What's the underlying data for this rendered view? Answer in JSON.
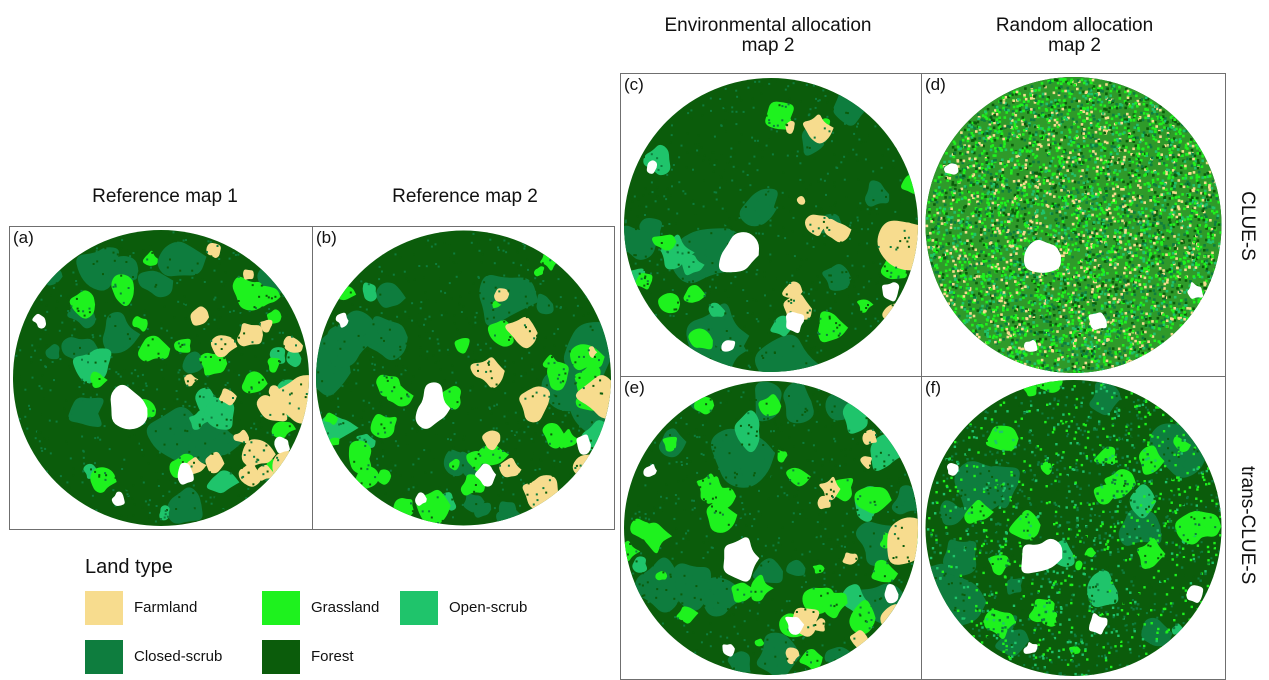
{
  "colors": {
    "farmland": "#f7dc8e",
    "grassland": "#1ef21e",
    "open_scrub": "#1fc46b",
    "closed_scrub": "#0e7d3e",
    "forest": "#0b5c0b",
    "urban": "#ffffff"
  },
  "columns": {
    "ref1": "Reference map 1",
    "ref2": "Reference map 2",
    "env": "Environmental allocation\nmap 2",
    "rand": "Random allocation\nmap 2"
  },
  "rows": {
    "clues": "CLUE-S",
    "trans": "trans-CLUE-S"
  },
  "panels": {
    "a": "(a)",
    "b": "(b)",
    "c": "(c)",
    "d": "(d)",
    "e": "(e)",
    "f": "(f)"
  },
  "legend": {
    "title": "Land type",
    "items": [
      {
        "label": "Farmland",
        "color": "#f7dc8e"
      },
      {
        "label": "Grassland",
        "color": "#1ef21e"
      },
      {
        "label": "Open-scrub",
        "color": "#1fc46b"
      },
      {
        "label": "Closed-scrub",
        "color": "#0e7d3e"
      },
      {
        "label": "Forest",
        "color": "#0b5c0b"
      }
    ]
  }
}
